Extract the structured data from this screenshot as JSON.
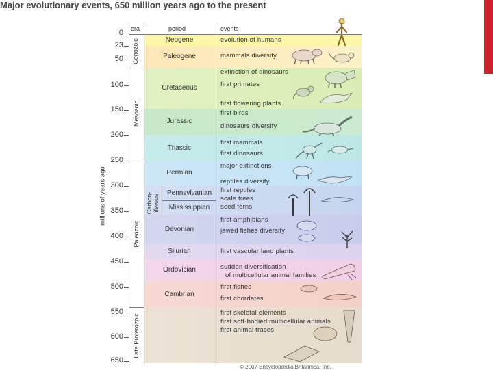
{
  "title": "Major evolutionary events, 650 million years ago to the present",
  "headers": {
    "era": "era",
    "period": "period",
    "events": "events"
  },
  "axis": {
    "label": "millions of years ago",
    "ticks": [
      "0",
      "23",
      "50",
      "100",
      "150",
      "200",
      "250",
      "300",
      "350",
      "400",
      "450",
      "500",
      "550",
      "600",
      "650"
    ]
  },
  "eras": {
    "cenozoic": "Cenozoic",
    "mesozoic": "Mesozoic",
    "paleozoic": "Paleozoic",
    "late_proterozoic": "Late Proterozoic"
  },
  "carboniferous": "Carbon-\niferous",
  "periods": {
    "neogene": "Neogene",
    "paleogene": "Paleogene",
    "cretaceous": "Cretaceous",
    "jurassic": "Jurassic",
    "triassic": "Triassic",
    "permian": "Permian",
    "pennsylvanian": "Pennsylvanian",
    "mississippian": "Mississippian",
    "devonian": "Devonian",
    "silurian": "Silurian",
    "ordovician": "Ordovician",
    "cambrian": "Cambrian"
  },
  "events": [
    "evolution of humans",
    "mammals diversify",
    "extinction of dinosaurs",
    "first primates",
    "first flowering plants",
    "first birds",
    "dinosaurs diversify",
    "first mammals",
    "first dinosaurs",
    "major extinctions",
    "reptiles diversify",
    "first reptiles",
    "scale trees",
    "seed ferns",
    "first amphibians",
    "jawed fishes diversify",
    "first vascular land plants",
    "sudden diversification",
    "of multicellular animal families",
    "first fishes",
    "first chordates",
    "first skeletal elements",
    "first soft-bodied multicellular animals",
    "first animal traces"
  ],
  "credit": "© 2007 Encyclopædia Britannica, Inc."
}
